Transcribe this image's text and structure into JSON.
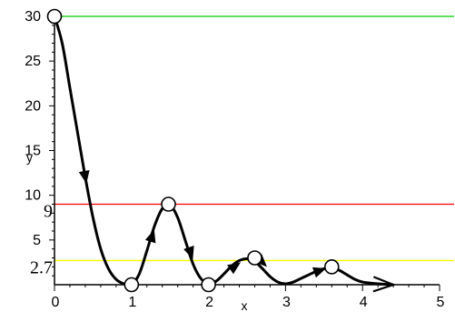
{
  "chart_data": {
    "type": "line",
    "xlabel": "x",
    "ylabel": "y",
    "xlim": [
      0,
      5
    ],
    "ylim": [
      0,
      30
    ],
    "x_ticks": [
      "0",
      "1",
      "2",
      "3",
      "4",
      "5"
    ],
    "y_ticks": [
      "5",
      "10",
      "15",
      "20",
      "25",
      "30"
    ],
    "grid": false,
    "horizontal_lines": [
      {
        "y": 30,
        "color": "#00cc00"
      },
      {
        "y": 9,
        "color": "#ff0000"
      },
      {
        "y": 2.7,
        "color": "#ffff00"
      }
    ],
    "annotations": [
      {
        "text": "9",
        "y": 9
      },
      {
        "text": "2.7",
        "y": 2.7
      }
    ],
    "series": [
      {
        "color": "#000000",
        "x": [
          0,
          0.1,
          0.2,
          0.3,
          0.4,
          0.5,
          0.6,
          0.7,
          0.8,
          0.9,
          1.0,
          1.1,
          1.2,
          1.3,
          1.4,
          1.5,
          1.6,
          1.7,
          1.8,
          1.9,
          2.0,
          2.1,
          2.2,
          2.3,
          2.4,
          2.5,
          2.6,
          2.7,
          2.8,
          2.9,
          3.0,
          3.1,
          3.2,
          3.3,
          3.4,
          3.5,
          3.6,
          3.7,
          3.8,
          3.9,
          4.0,
          4.2,
          4.4
        ],
        "values": [
          30,
          27,
          22,
          17,
          12,
          7.5,
          4,
          1.8,
          0.6,
          0.1,
          0,
          1.2,
          3.8,
          6.6,
          8.5,
          8.9,
          7.5,
          4.9,
          2.3,
          0.7,
          0.1,
          0.4,
          1.2,
          2.1,
          2.7,
          2.9,
          2.6,
          1.8,
          0.9,
          0.3,
          0.1,
          0.3,
          0.7,
          1.1,
          1.5,
          1.8,
          1.9,
          1.6,
          1.1,
          0.6,
          0.3,
          0.1,
          0
        ]
      }
    ],
    "markers": [
      {
        "x": 0.0,
        "y": 30,
        "shape": "circle"
      },
      {
        "x": 1.0,
        "y": 0,
        "shape": "circle"
      },
      {
        "x": 1.48,
        "y": 9,
        "shape": "circle"
      },
      {
        "x": 2.0,
        "y": 0,
        "shape": "circle"
      },
      {
        "x": 2.6,
        "y": 3,
        "shape": "circle"
      },
      {
        "x": 3.6,
        "y": 2,
        "shape": "circle"
      }
    ],
    "direction_arrows": [
      {
        "x": 0.4,
        "y": 12
      },
      {
        "x": 1.27,
        "y": 5.5
      },
      {
        "x": 1.77,
        "y": 3.5
      },
      {
        "x": 2.35,
        "y": 2.1
      },
      {
        "x": 2.7,
        "y": 2.5
      },
      {
        "x": 3.45,
        "y": 1.6
      },
      {
        "x": 4.4,
        "y": 0
      }
    ]
  }
}
